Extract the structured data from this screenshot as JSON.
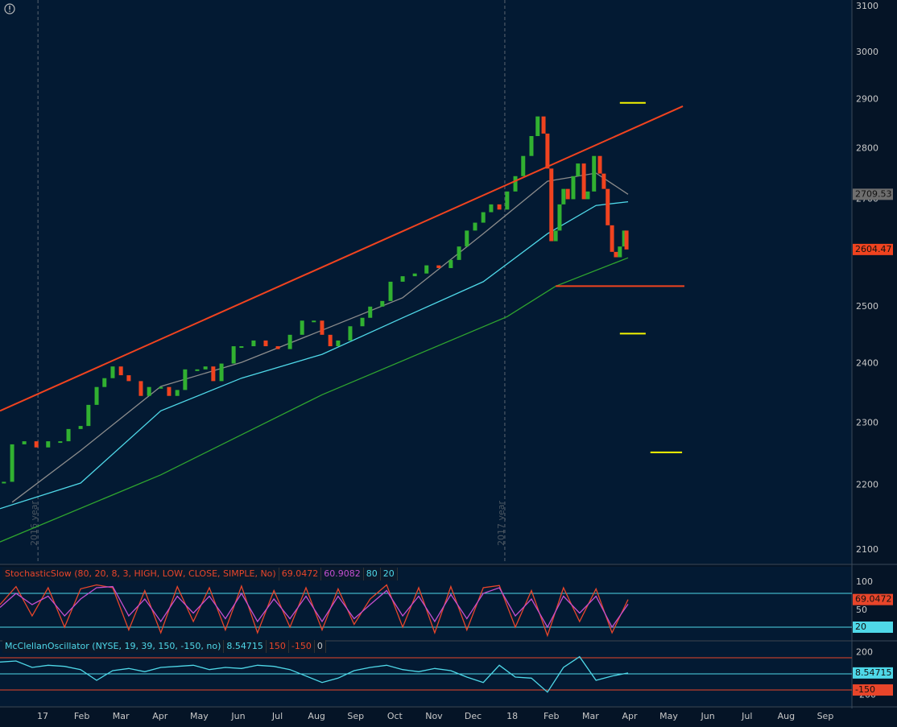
{
  "chart_data": [
    {
      "type": "candlestick",
      "log_scale": true,
      "ylim": [
        2100,
        3100
      ],
      "yticks": [
        3100,
        3000,
        2900,
        2800,
        2700,
        2600,
        2500,
        2400,
        2300,
        2200,
        2100
      ],
      "xlim": [
        -1.09,
        20.68
      ],
      "xticks": [
        {
          "value": 0,
          "label": "17"
        },
        {
          "value": 1,
          "label": "Feb"
        },
        {
          "value": 2,
          "label": "Mar"
        },
        {
          "value": 3,
          "label": "Apr"
        },
        {
          "value": 4,
          "label": "May"
        },
        {
          "value": 5,
          "label": "Jun"
        },
        {
          "value": 6,
          "label": "Jul"
        },
        {
          "value": 7,
          "label": "Aug"
        },
        {
          "value": 8,
          "label": "Sep"
        },
        {
          "value": 9,
          "label": "Oct"
        },
        {
          "value": 10,
          "label": "Nov"
        },
        {
          "value": 11,
          "label": "Dec"
        },
        {
          "value": 12,
          "label": "18"
        },
        {
          "value": 13,
          "label": "Feb"
        },
        {
          "value": 14,
          "label": "Mar"
        },
        {
          "value": 15,
          "label": "Apr"
        },
        {
          "value": 16,
          "label": "May"
        },
        {
          "value": 17,
          "label": "Jun"
        },
        {
          "value": 18,
          "label": "Jul"
        },
        {
          "value": 19,
          "label": "Aug"
        },
        {
          "value": 20,
          "label": "Sep"
        }
      ],
      "up_color": "#31b131",
      "down_color": "#f0431f",
      "x": [
        -0.99,
        -0.78,
        -0.47,
        -0.16,
        0.14,
        0.45,
        0.66,
        0.97,
        1.17,
        1.38,
        1.58,
        1.79,
        2.0,
        2.2,
        2.51,
        2.72,
        3.02,
        3.23,
        3.44,
        3.64,
        3.95,
        4.16,
        4.36,
        4.57,
        4.88,
        5.08,
        5.39,
        5.7,
        6.01,
        6.32,
        6.63,
        6.93,
        7.14,
        7.35,
        7.55,
        7.86,
        8.17,
        8.37,
        8.68,
        8.89,
        9.2,
        9.51,
        9.81,
        10.12,
        10.43,
        10.64,
        10.84,
        11.05,
        11.26,
        11.46,
        11.67,
        11.87,
        12.08,
        12.28,
        12.49,
        12.65,
        12.8,
        12.9,
        13.0,
        13.11,
        13.21,
        13.31,
        13.42,
        13.56,
        13.68,
        13.83,
        13.93,
        14.09,
        14.24,
        14.34,
        14.44,
        14.55,
        14.65,
        14.75,
        14.86,
        14.92
      ],
      "values": [
        2205,
        2265,
        2270,
        2260,
        2270,
        2270,
        2290,
        2295,
        2330,
        2360,
        2375,
        2395,
        2380,
        2370,
        2345,
        2360,
        2360,
        2345,
        2355,
        2390,
        2390,
        2395,
        2370,
        2400,
        2430,
        2430,
        2440,
        2430,
        2425,
        2450,
        2475,
        2475,
        2450,
        2430,
        2440,
        2465,
        2480,
        2500,
        2510,
        2545,
        2555,
        2560,
        2575,
        2570,
        2585,
        2610,
        2640,
        2655,
        2675,
        2690,
        2680,
        2715,
        2745,
        2785,
        2825,
        2865,
        2830,
        2760,
        2620,
        2640,
        2690,
        2720,
        2700,
        2745,
        2770,
        2700,
        2715,
        2785,
        2750,
        2720,
        2650,
        2600,
        2590,
        2610,
        2640,
        2604.47
      ],
      "series": [
        {
          "color": "#8c8c8c",
          "x": [
            -0.78,
            0.97,
            3.02,
            5.08,
            7.14,
            9.2,
            11.26,
            12.9,
            14.14,
            14.96
          ],
          "values": [
            2173,
            2255,
            2361,
            2402,
            2458,
            2516,
            2634,
            2735,
            2751,
            2709.53
          ]
        },
        {
          "color": "#4fd8e8",
          "x": [
            -1.09,
            0.97,
            3.02,
            5.08,
            7.14,
            9.2,
            11.26,
            12.9,
            14.14,
            14.96
          ],
          "values": [
            2163,
            2203,
            2320,
            2375,
            2416,
            2480,
            2545,
            2634,
            2688,
            2695
          ]
        },
        {
          "color": "#2fa52f",
          "x": [
            -1.09,
            3.02,
            7.14,
            11.87,
            13.11,
            14.96
          ],
          "values": [
            2112,
            2216,
            2347,
            2482,
            2537,
            2589
          ]
        }
      ],
      "drawings": [
        {
          "color": "#f0431f",
          "x": [
            -1.09,
            16.36
          ],
          "y": [
            2320,
            2886
          ]
        },
        {
          "color": "#f0431f",
          "x": [
            13.11,
            16.4
          ],
          "y": [
            2537,
            2537
          ]
        },
        {
          "color": "#f5f500",
          "x": [
            14.75,
            15.41
          ],
          "y": [
            2893,
            2893
          ]
        },
        {
          "color": "#f5f500",
          "x": [
            14.75,
            15.41
          ],
          "y": [
            2452,
            2452
          ]
        },
        {
          "color": "#f5f500",
          "x": [
            15.53,
            16.34
          ],
          "y": [
            2252,
            2252
          ]
        }
      ],
      "markers": [
        {
          "x": -0.12,
          "label": "2016 year"
        },
        {
          "x": 11.81,
          "label": "2017 year"
        }
      ]
    },
    {
      "type": "line",
      "label": "StochasticSlow (80, 20, 8, 3, HIGH, LOW, CLOSE, SIMPLE, No)",
      "ylim": [
        0,
        100
      ],
      "yticks": [
        100,
        50
      ],
      "levels": [
        80,
        20
      ],
      "level_color": "#4fd8e8",
      "xlim": [
        -1.09,
        20.68
      ],
      "x": [
        -1.09,
        -0.68,
        -0.27,
        0.14,
        0.56,
        0.97,
        1.38,
        1.79,
        2.2,
        2.61,
        3.02,
        3.44,
        3.85,
        4.26,
        4.67,
        5.08,
        5.49,
        5.91,
        6.32,
        6.73,
        7.14,
        7.55,
        7.96,
        8.37,
        8.79,
        9.2,
        9.61,
        10.02,
        10.43,
        10.84,
        11.26,
        11.67,
        12.08,
        12.49,
        12.9,
        13.31,
        13.72,
        14.14,
        14.55,
        14.96
      ],
      "series": [
        {
          "color": "#e8452a",
          "values": [
            60,
            92,
            40,
            90,
            20,
            88,
            95,
            90,
            15,
            85,
            10,
            92,
            30,
            90,
            15,
            93,
            10,
            85,
            20,
            90,
            15,
            88,
            25,
            70,
            95,
            20,
            90,
            10,
            92,
            15,
            90,
            94,
            20,
            85,
            5,
            90,
            30,
            88,
            10,
            69.0472
          ]
        },
        {
          "color": "#c44fd0",
          "values": [
            55,
            80,
            60,
            75,
            40,
            70,
            90,
            92,
            40,
            70,
            30,
            75,
            45,
            75,
            35,
            80,
            30,
            70,
            35,
            75,
            30,
            75,
            35,
            60,
            85,
            40,
            75,
            30,
            78,
            35,
            80,
            90,
            40,
            70,
            20,
            75,
            45,
            75,
            20,
            60.9082
          ]
        }
      ]
    },
    {
      "type": "line",
      "label": "McClellanOscillator (NYSE, 19, 39, 150, -150, no)",
      "ylim": [
        -270,
        210
      ],
      "yticks": [
        200,
        -200
      ],
      "levels": [
        150,
        -150,
        0
      ],
      "level_colors": [
        "#e8452a",
        "#e8452a",
        "#4fd8e8"
      ],
      "xlim": [
        -1.09,
        20.68
      ],
      "x": [
        -1.09,
        -0.68,
        -0.27,
        0.14,
        0.56,
        0.97,
        1.38,
        1.79,
        2.2,
        2.61,
        3.02,
        3.44,
        3.85,
        4.26,
        4.67,
        5.08,
        5.49,
        5.91,
        6.32,
        6.73,
        7.14,
        7.55,
        7.96,
        8.37,
        8.79,
        9.2,
        9.61,
        10.02,
        10.43,
        10.84,
        11.26,
        11.67,
        12.08,
        12.49,
        12.9,
        13.31,
        13.72,
        14.14,
        14.55,
        14.96
      ],
      "series": [
        {
          "color": "#4fd8e8",
          "values": [
            110,
            120,
            60,
            80,
            70,
            40,
            -60,
            30,
            50,
            20,
            60,
            70,
            80,
            40,
            60,
            50,
            80,
            70,
            40,
            -20,
            -80,
            -40,
            30,
            60,
            80,
            40,
            20,
            50,
            30,
            -30,
            -80,
            80,
            -30,
            -40,
            -170,
            60,
            160,
            -60,
            -20,
            8.54715
          ]
        }
      ]
    }
  ]
}
